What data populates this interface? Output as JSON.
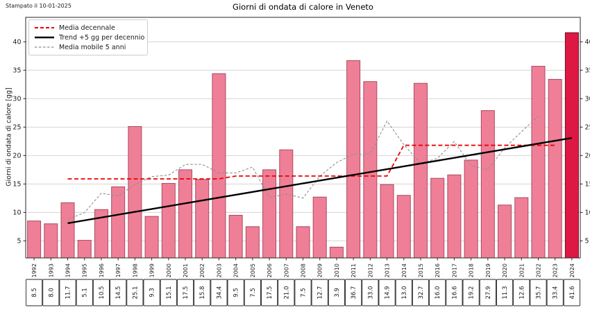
{
  "stamp": "Stampato il 10-01-2025",
  "chart_data": {
    "type": "bar",
    "title": "Giorni di ondata di calore in Veneto",
    "ylabel": "Giorni di ondata di calore [gg]",
    "xlabel": "",
    "years": [
      1992,
      1993,
      1994,
      1995,
      1996,
      1997,
      1998,
      1999,
      2000,
      2001,
      2002,
      2003,
      2004,
      2005,
      2006,
      2007,
      2008,
      2009,
      2010,
      2011,
      2012,
      2013,
      2014,
      2015,
      2016,
      2017,
      2018,
      2019,
      2020,
      2021,
      2022,
      2023,
      2024
    ],
    "values": [
      8.5,
      8.0,
      11.7,
      5.1,
      10.5,
      14.5,
      25.1,
      9.3,
      15.1,
      17.5,
      15.8,
      34.4,
      9.5,
      7.5,
      17.5,
      21.0,
      7.5,
      12.7,
      3.9,
      36.7,
      33.0,
      14.9,
      13.0,
      32.7,
      16.0,
      16.6,
      19.2,
      27.9,
      11.3,
      12.6,
      35.7,
      33.4,
      41.6
    ],
    "table_values": [
      "8.5",
      "8.0",
      "11.7",
      "5.1",
      "10.5",
      "14.5",
      "25.1",
      "9.3",
      "15.1",
      "17.5",
      "15.8",
      "34.4",
      "9.5",
      "7.5",
      "17.5",
      "21.0",
      "7.5",
      "12.7",
      "3.9",
      "36.7",
      "33.0",
      "14.9",
      "13.0",
      "32.7",
      "16.0",
      "16.6",
      "19.2",
      "27.9",
      "11.3",
      "12.6",
      "35.7",
      "33.4",
      "41.6"
    ],
    "highlight_year": 2024,
    "yticks": [
      5,
      10,
      15,
      20,
      25,
      30,
      35,
      40
    ],
    "ylim": [
      2,
      44.3
    ],
    "grid": true,
    "legend": {
      "position": "upper-left",
      "entries": [
        {
          "label": "Media decennale",
          "color": "#ec0000",
          "style": "dashed"
        },
        {
          "label": "Trend +5 gg per decennio",
          "color": "#000000",
          "style": "solid"
        },
        {
          "label": "Media mobile 5 anni",
          "color": "#8f8f8f",
          "style": "dashed"
        }
      ]
    },
    "series": [
      {
        "name": "Media decennale",
        "type": "step-line",
        "points": [
          [
            1994,
            15.9
          ],
          [
            2003,
            15.9
          ],
          [
            2004,
            16.4
          ],
          [
            2013,
            16.4
          ],
          [
            2014,
            21.8
          ],
          [
            2023,
            21.8
          ]
        ]
      },
      {
        "name": "Trend +5 gg per decennio",
        "type": "line",
        "points": [
          [
            1994,
            8.1
          ],
          [
            2024,
            23.1
          ]
        ]
      },
      {
        "name": "Media mobile 5 anni",
        "type": "line",
        "x_start": 1994,
        "values": [
          8.76,
          9.96,
          13.38,
          12.9,
          14.9,
          16.3,
          16.56,
          18.42,
          18.46,
          16.94,
          16.94,
          17.98,
          12.6,
          13.24,
          12.52,
          16.36,
          18.76,
          20.24,
          20.3,
          26.06,
          21.92,
          18.64,
          19.5,
          22.48,
          18.2,
          17.52,
          21.34,
          24.18,
          26.92
        ]
      }
    ],
    "colors": {
      "bar_fill": "#ef7f97",
      "bar_edge": "#a94a5f",
      "bar_highlight_fill": "#dc1843",
      "bar_highlight_edge": "#6b0e24",
      "grid": "#d4d4d4",
      "spine": "#262626",
      "trend": "#000000",
      "decadal": "#ec0000",
      "moving_avg": "#8f8f8f"
    }
  }
}
